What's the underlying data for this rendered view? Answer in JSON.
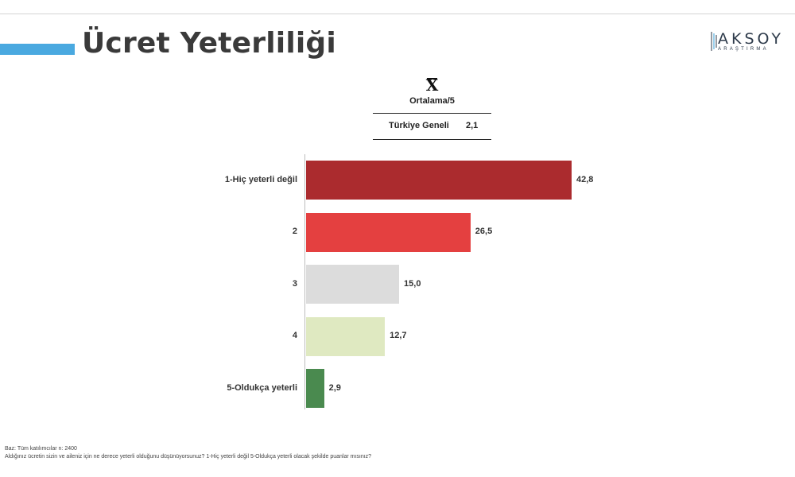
{
  "header": {
    "title": "Ücret Yeterliliği",
    "logo_text": "AKSOY",
    "logo_subtext": "ARAŞTIRMA",
    "accent_color": "#4aa9e0"
  },
  "summary": {
    "symbol": "X",
    "label": "Ortalama/5",
    "row_label": "Türkiye Geneli",
    "row_value": "2,1"
  },
  "chart_data": {
    "type": "bar",
    "orientation": "horizontal",
    "categories": [
      "1-Hiç yeterli değil",
      "2",
      "3",
      "4",
      "5-Oldukça yeterli"
    ],
    "values": [
      42.8,
      26.5,
      15.0,
      12.7,
      2.9
    ],
    "value_labels": [
      "42,8",
      "26,5",
      "15,0",
      "12,7",
      "2,9"
    ],
    "colors": [
      "#ab2b2e",
      "#e44040",
      "#dcdcdc",
      "#dfe9c1",
      "#4a8a4f"
    ],
    "title": "",
    "xlabel": "",
    "ylabel": "",
    "grid": false
  },
  "footer": {
    "base": "Baz: Tüm katılımcılar n: 2400",
    "question": "Aldığınız ücretin sizin ve aileniz için ne derece yeterli olduğunu düşünüyorsunuz? 1-Hiç yeterli değil 5-Oldukça yeterli olacak şekilde puanlar mısınız?"
  }
}
